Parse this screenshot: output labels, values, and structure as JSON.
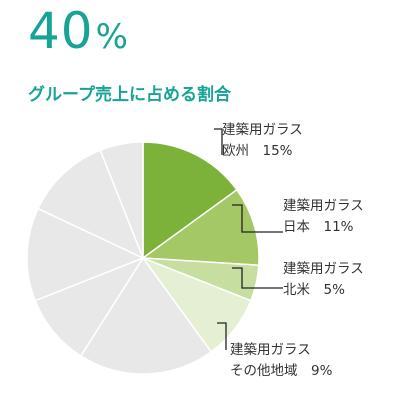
{
  "headline": {
    "value": "40",
    "unit": "%"
  },
  "subtitle": "グループ売上に占める割合",
  "colors": {
    "accent": "#17a396",
    "slice_gray": "#e8e8e8",
    "slice_border": "#ffffff",
    "leader_line": "#222222"
  },
  "chart_data": {
    "type": "pie",
    "start": "12 o'clock",
    "direction": "clockwise",
    "highlighted_total_percent": 40,
    "slices": [
      {
        "label_line1": "建築用ガラス",
        "label_line2": "欧州　15%",
        "value": 15,
        "color": "#7db23a"
      },
      {
        "label_line1": "建築用ガラス",
        "label_line2": "日本　11%",
        "value": 11,
        "color": "#a4c866"
      },
      {
        "label_line1": "建築用ガラス",
        "label_line2": "北米　5%",
        "value": 5,
        "color": "#c6dea0"
      },
      {
        "label_line1": "建築用ガラス",
        "label_line2": "その他地域　9%",
        "value": 9,
        "color": "#e4efd3"
      },
      {
        "label_line1": "",
        "label_line2": "",
        "value": 19,
        "color": "#e8e8e8"
      },
      {
        "label_line1": "",
        "label_line2": "",
        "value": 10,
        "color": "#e8e8e8"
      },
      {
        "label_line1": "",
        "label_line2": "",
        "value": 13,
        "color": "#e8e8e8"
      },
      {
        "label_line1": "",
        "label_line2": "",
        "value": 12,
        "color": "#e8e8e8"
      },
      {
        "label_line1": "",
        "label_line2": "",
        "value": 6,
        "color": "#e8e8e8"
      }
    ]
  }
}
